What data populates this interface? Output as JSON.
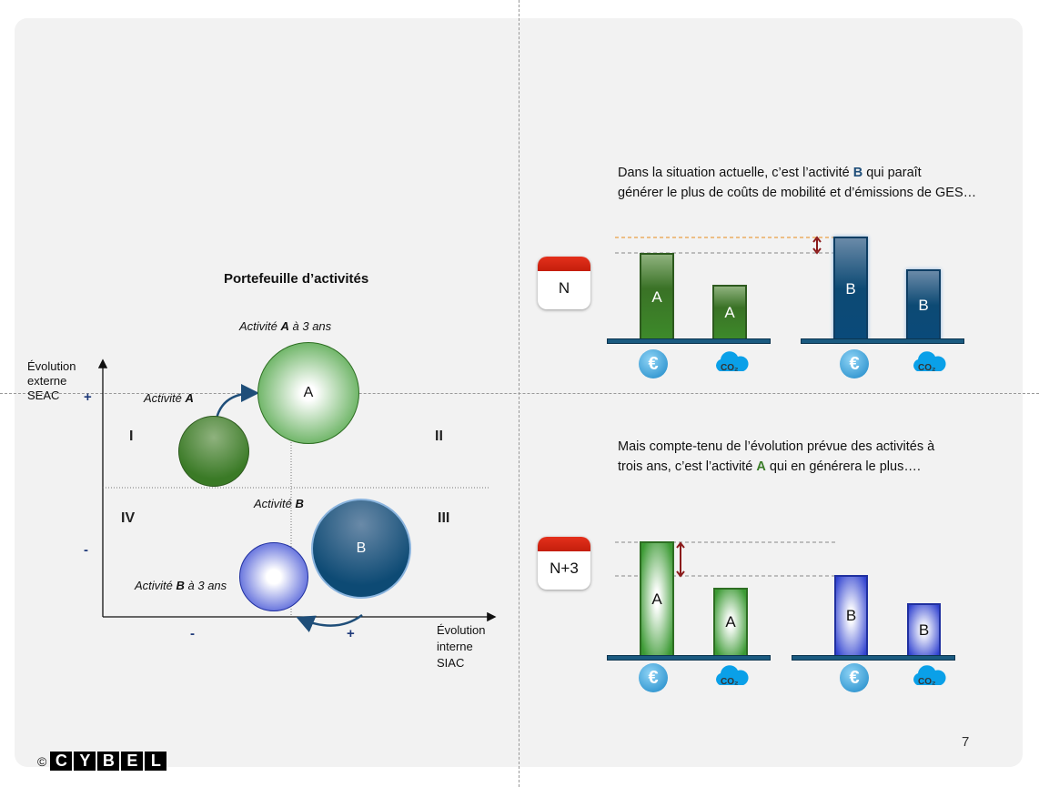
{
  "left": {
    "title": "Portefeuille d’activités",
    "y_axis_label": [
      "Évolution",
      "externe",
      "SEAC"
    ],
    "x_axis_label": [
      "Évolution",
      "interne",
      "SIAC"
    ],
    "y_plus": "+",
    "y_minus": "-",
    "x_minus": "-",
    "x_plus": "+",
    "quadrants": [
      "I",
      "II",
      "III",
      "IV"
    ],
    "label_a3": {
      "pre": "Activité ",
      "bold": "A",
      "post": " à 3 ans"
    },
    "label_a": {
      "pre": "Activité ",
      "bold": "A"
    },
    "label_b": {
      "pre": "Activité ",
      "bold": "B"
    },
    "label_b3": {
      "pre": "Activité ",
      "bold": "B",
      "post": " à 3 ans"
    },
    "bubble_a": "A",
    "bubble_b": "B"
  },
  "right": {
    "text1": {
      "pre": "Dans la situation actuelle, c’est l’activité ",
      "hl": "B",
      "post": " qui paraît",
      "line2": "générer le plus de coûts de mobilité et d’émissions de GES…"
    },
    "text2": {
      "line1": "Mais compte-tenu de l’évolution prévue des activités à",
      "pre": "trois ans, c’est l’activité ",
      "hl": "A",
      "post": " qui en générera le plus…."
    },
    "cal1": "N",
    "cal2": "N+3",
    "bar_a": "A",
    "bar_b": "B",
    "co2": "CO₂",
    "euro": "€"
  },
  "colors": {
    "b_highlight": "#1f4e79",
    "a_highlight": "#3a7d28"
  },
  "footer": {
    "copyright": "©",
    "logo": [
      "C",
      "Y",
      "B",
      "E",
      "L"
    ],
    "page": "7"
  }
}
